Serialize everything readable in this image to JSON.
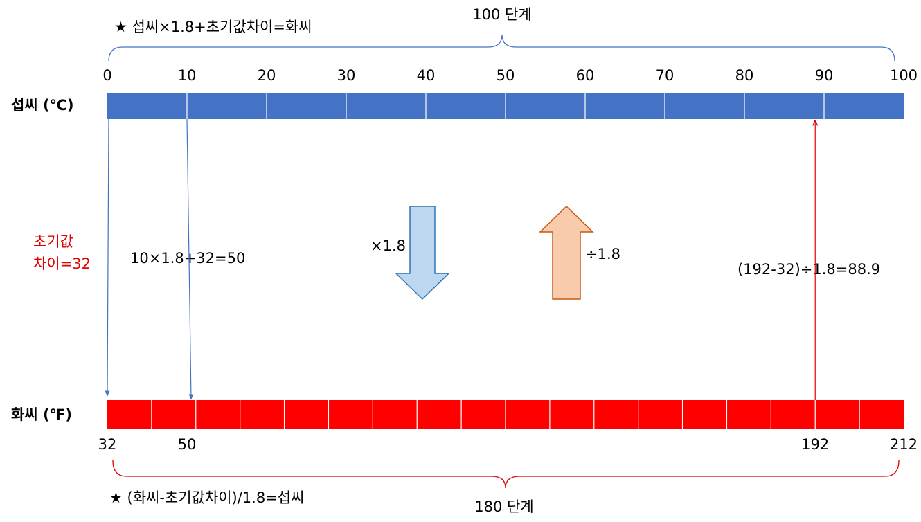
{
  "formula_top": "★ 섭씨×1.8+초기값차이=화씨",
  "celsius": {
    "label": "섭씨 (℃)",
    "steps": "100 단계",
    "ticks": [
      0,
      10,
      20,
      30,
      40,
      50,
      60,
      70,
      80,
      90,
      100
    ]
  },
  "fahrenheit": {
    "label": "화씨 (℉)",
    "steps": "180 단계",
    "ticks": [
      32,
      50,
      192,
      212
    ]
  },
  "annotations": {
    "offset": [
      "초기값",
      "차이=32"
    ],
    "example_c_to_f": "10×1.8+32=50",
    "multiply": "×1.8",
    "divide": "÷1.8",
    "example_f_to_c": "(192-32)÷1.8=88.9"
  },
  "formula_bottom": "★ (화씨-초기값차이)/1.8=섭씨"
}
